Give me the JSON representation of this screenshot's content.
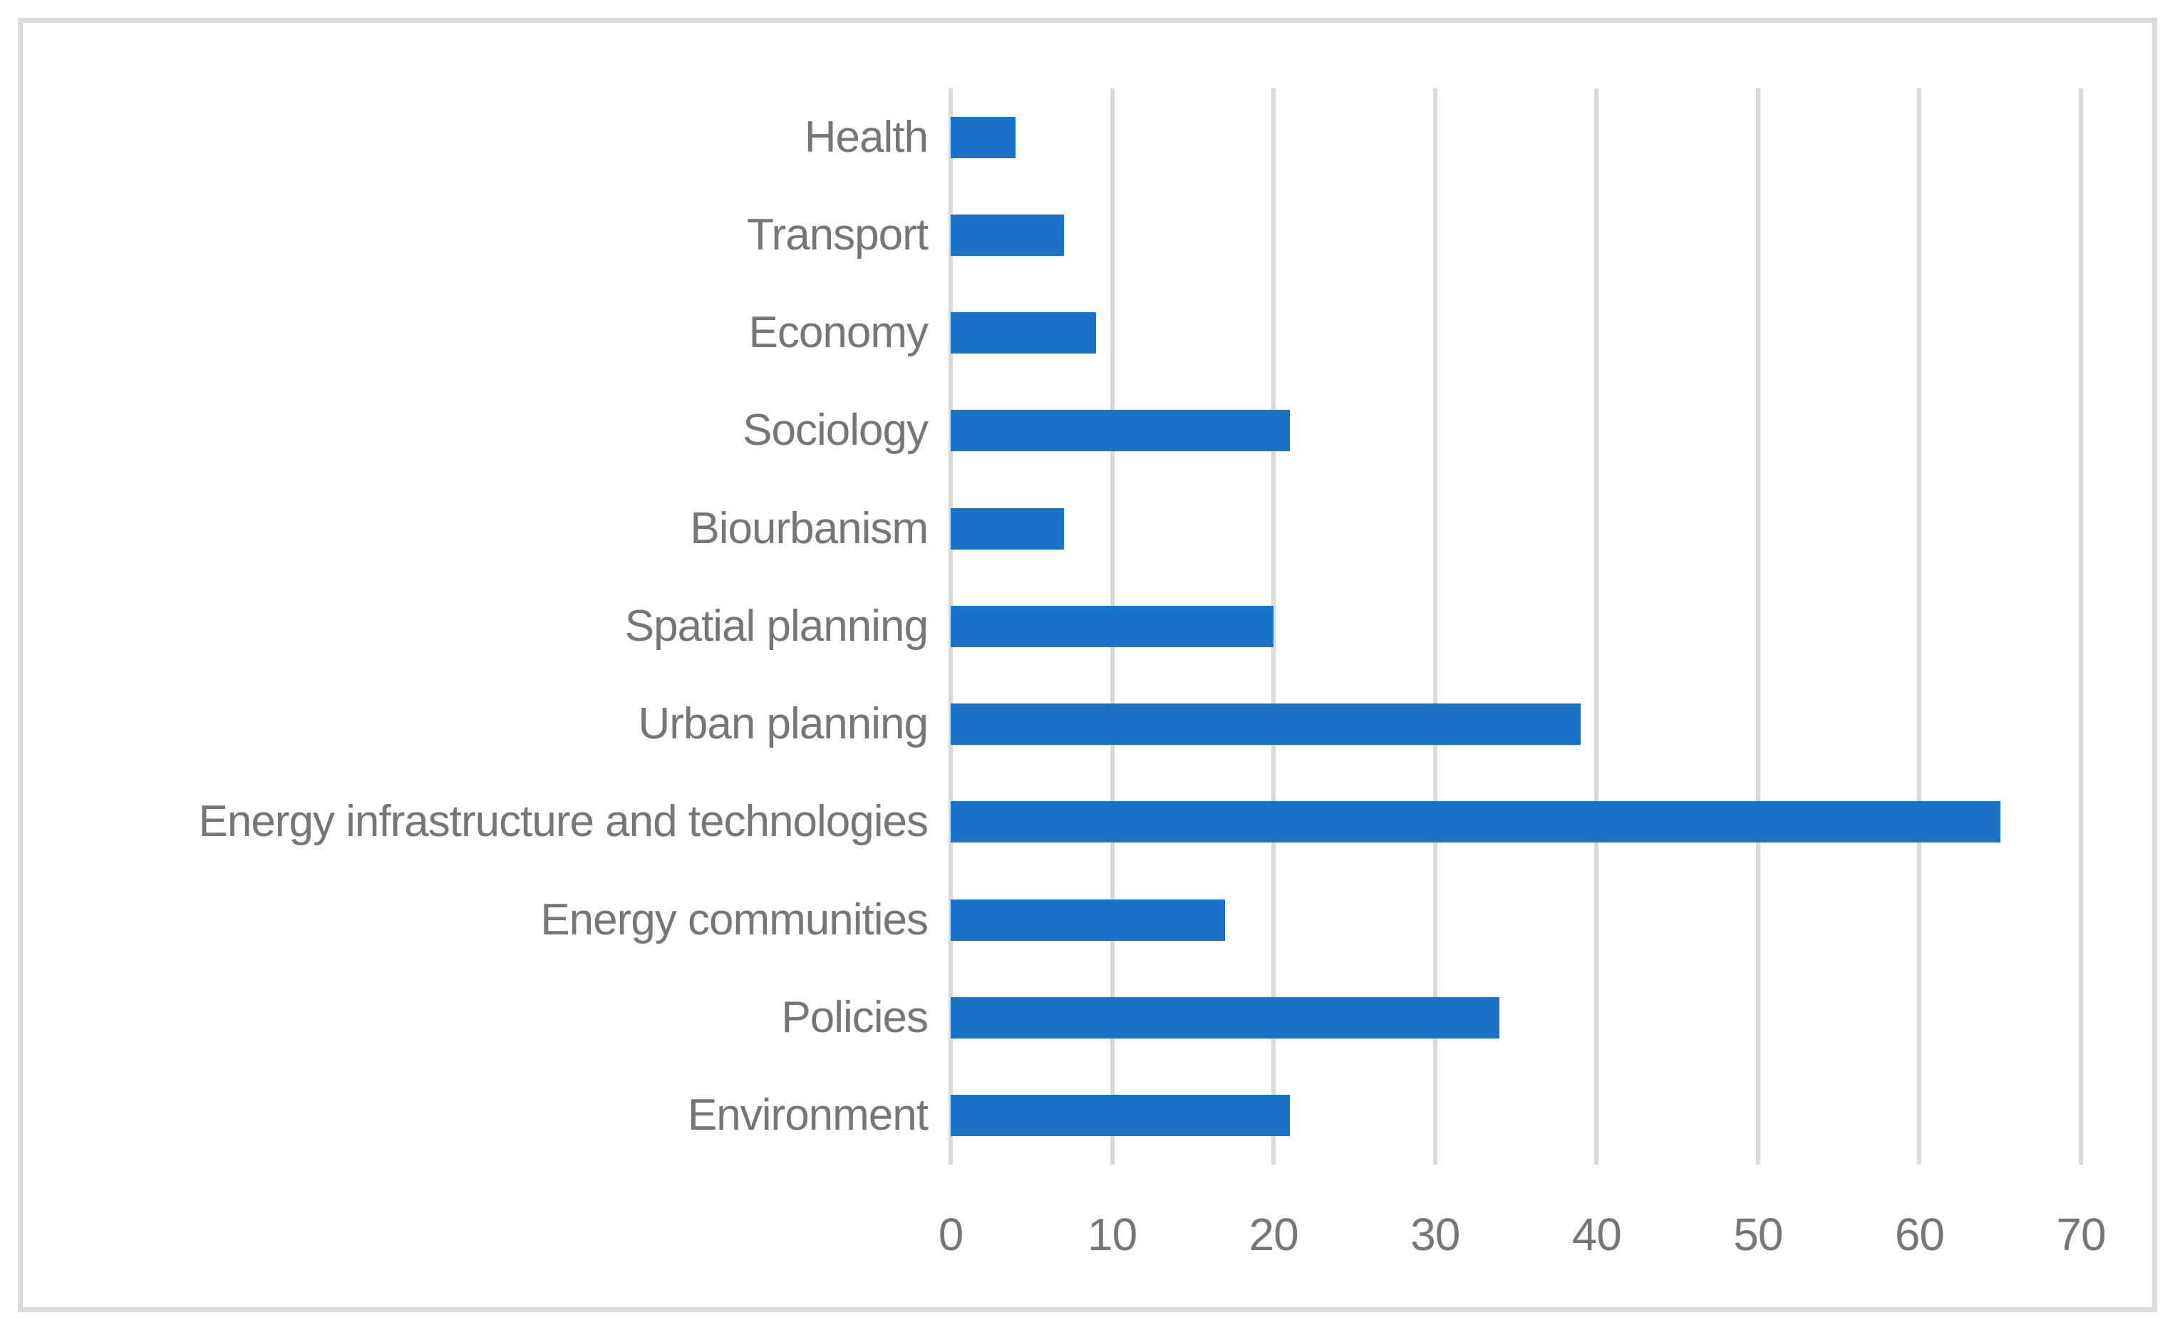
{
  "chart_data": {
    "type": "bar",
    "orientation": "horizontal",
    "title": "",
    "xlabel": "",
    "ylabel": "",
    "categories": [
      "Health",
      "Transport",
      "Economy",
      "Sociology",
      "Biourbanism",
      "Spatial planning",
      "Urban planning",
      "Energy infrastructure and technologies",
      "Energy communities",
      "Policies",
      "Environment"
    ],
    "values": [
      4,
      7,
      9,
      21,
      7,
      20,
      39,
      65,
      17,
      34,
      21
    ],
    "xlim": [
      0,
      70
    ],
    "xticks": [
      "0",
      "10",
      "20",
      "30",
      "40",
      "50",
      "60",
      "70"
    ],
    "grid": "vertical-gridlines-on",
    "legend_position": "none",
    "colors": {
      "bar": "#1B73C8",
      "gridline": "#D9D9D9",
      "text": "#767676",
      "frame_border": "#DBDBDB",
      "background": "#FFFFFF"
    }
  }
}
